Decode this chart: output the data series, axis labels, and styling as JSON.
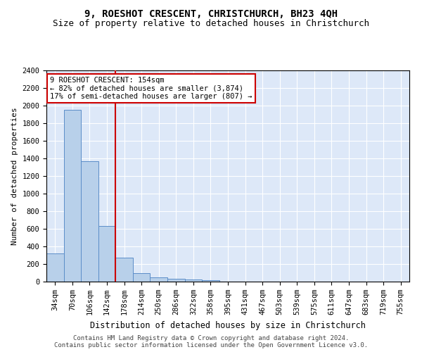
{
  "title": "9, ROESHOT CRESCENT, CHRISTCHURCH, BH23 4QH",
  "subtitle": "Size of property relative to detached houses in Christchurch",
  "xlabel": "Distribution of detached houses by size in Christchurch",
  "ylabel": "Number of detached properties",
  "categories": [
    "34sqm",
    "70sqm",
    "106sqm",
    "142sqm",
    "178sqm",
    "214sqm",
    "250sqm",
    "286sqm",
    "322sqm",
    "358sqm",
    "395sqm",
    "431sqm",
    "467sqm",
    "503sqm",
    "539sqm",
    "575sqm",
    "611sqm",
    "647sqm",
    "683sqm",
    "719sqm",
    "755sqm"
  ],
  "values": [
    320,
    1950,
    1370,
    630,
    270,
    100,
    50,
    35,
    25,
    20,
    0,
    0,
    0,
    0,
    0,
    0,
    0,
    0,
    0,
    0,
    0
  ],
  "bar_color": "#b8d0ea",
  "bar_edge_color": "#5b8dc8",
  "vline_color": "#cc0000",
  "annotation_line1": "9 ROESHOT CRESCENT: 154sqm",
  "annotation_line2": "← 82% of detached houses are smaller (3,874)",
  "annotation_line3": "17% of semi-detached houses are larger (807) →",
  "annotation_box_color": "white",
  "annotation_box_edge": "#cc0000",
  "ylim": [
    0,
    2400
  ],
  "yticks": [
    0,
    200,
    400,
    600,
    800,
    1000,
    1200,
    1400,
    1600,
    1800,
    2000,
    2200,
    2400
  ],
  "plot_bg_color": "#dde8f8",
  "grid_color": "#ffffff",
  "footer": "Contains HM Land Registry data © Crown copyright and database right 2024.\nContains public sector information licensed under the Open Government Licence v3.0.",
  "title_fontsize": 10,
  "subtitle_fontsize": 9,
  "xlabel_fontsize": 8.5,
  "ylabel_fontsize": 8,
  "tick_fontsize": 7.5,
  "annot_fontsize": 7.5,
  "footer_fontsize": 6.5
}
